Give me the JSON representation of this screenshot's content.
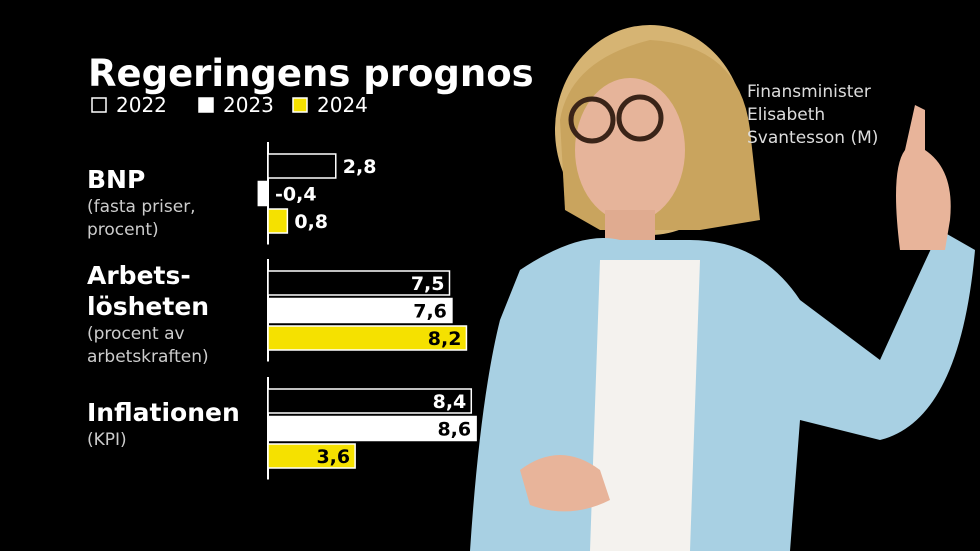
{
  "chart_data": {
    "type": "bar",
    "orientation": "horizontal",
    "title": "Regeringens prognos",
    "caption": [
      "Finansminister",
      "Elisabeth",
      "Svantesson (M)"
    ],
    "categories": [
      {
        "title": [
          "BNP"
        ],
        "note": [
          "(fasta priser,",
          "procent)"
        ]
      },
      {
        "title": [
          "Arbets-",
          "lösheten"
        ],
        "note": [
          "(procent av",
          "arbetskraften)"
        ]
      },
      {
        "title": [
          "Inflationen"
        ],
        "note": [
          "(KPI)"
        ]
      }
    ],
    "series": [
      {
        "name": "2022",
        "color": "#000000",
        "values": [
          2.8,
          7.5,
          8.4
        ],
        "value_labels": [
          "2,8",
          "7,5",
          "8,4"
        ]
      },
      {
        "name": "2023",
        "color": "#ffffff",
        "values": [
          -0.4,
          7.6,
          8.6
        ],
        "value_labels": [
          "-0,4",
          "7,6",
          "8,6"
        ]
      },
      {
        "name": "2024",
        "color": "#f5e100",
        "values": [
          0.8,
          8.2,
          3.6
        ],
        "value_labels": [
          "0,8",
          "8,2",
          "3,6"
        ]
      }
    ]
  }
}
